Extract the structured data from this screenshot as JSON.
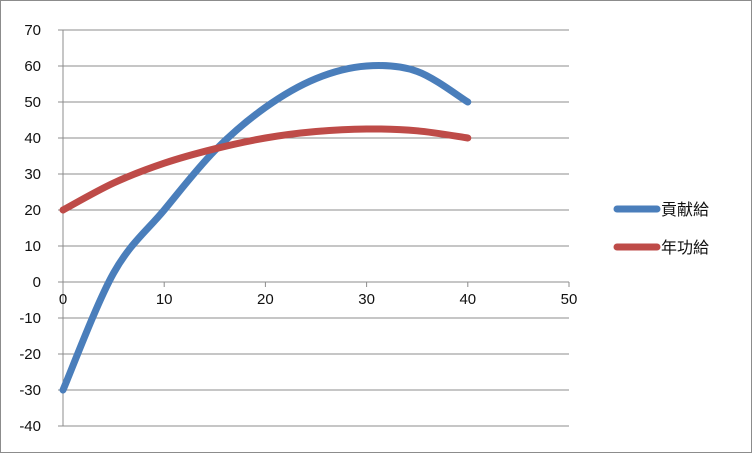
{
  "chart_data": {
    "type": "line",
    "title": "",
    "xlabel": "",
    "ylabel": "",
    "xlim": [
      0,
      50
    ],
    "ylim": [
      -40,
      70
    ],
    "x_ticks": [
      0,
      10,
      20,
      30,
      40,
      50
    ],
    "y_ticks": [
      70,
      60,
      50,
      40,
      30,
      20,
      10,
      0,
      -10,
      -20,
      -30,
      -40
    ],
    "grid": "horizontal",
    "legend_position": "right",
    "x": [
      0,
      5,
      10,
      15,
      20,
      25,
      30,
      35,
      40
    ],
    "series": [
      {
        "name": "貢献給",
        "color": "#4a7ebb",
        "values": [
          -30,
          2.5,
          20,
          36.5,
          48.5,
          56.5,
          60,
          58.5,
          50
        ]
      },
      {
        "name": "年功給",
        "color": "#be4b48",
        "values": [
          20,
          27.5,
          33,
          37,
          40,
          41.8,
          42.5,
          42,
          40
        ]
      }
    ]
  }
}
